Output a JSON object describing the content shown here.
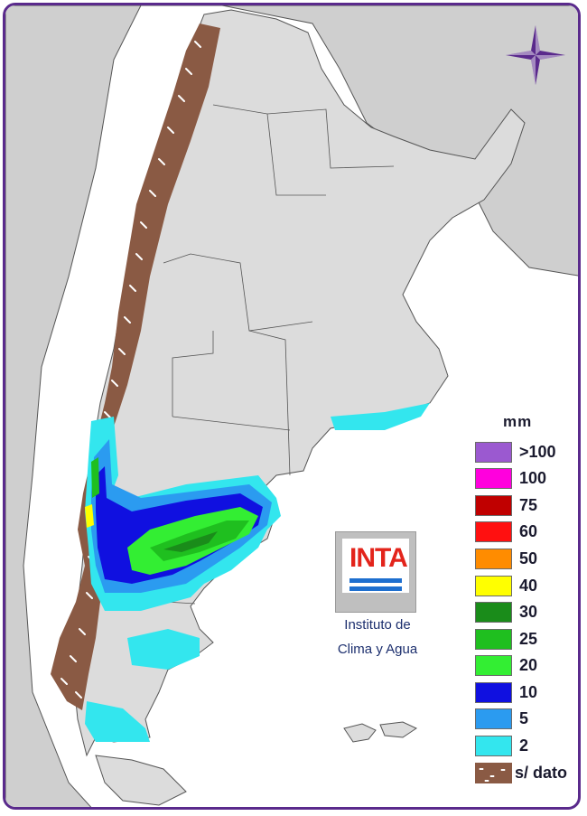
{
  "legend": {
    "title": "mm",
    "items": [
      {
        "label": ">100",
        "color": "#9b59d0"
      },
      {
        "label": "100",
        "color": "#ff00dd"
      },
      {
        "label": "75",
        "color": "#c00000"
      },
      {
        "label": "60",
        "color": "#ff1010"
      },
      {
        "label": "50",
        "color": "#ff8c00"
      },
      {
        "label": "40",
        "color": "#ffff00"
      },
      {
        "label": "30",
        "color": "#1a8c1a"
      },
      {
        "label": "25",
        "color": "#1fbf1f"
      },
      {
        "label": "20",
        "color": "#33ee33"
      },
      {
        "label": "10",
        "color": "#1010e0"
      },
      {
        "label": "5",
        "color": "#2b9bf0"
      },
      {
        "label": "2",
        "color": "#33e6ee"
      },
      {
        "label": "s/ dato",
        "color": "#8a5a44"
      }
    ]
  },
  "logo": {
    "text": "INTA",
    "caption_line1": "Instituto de",
    "caption_line2": "Clima y Agua"
  },
  "map": {
    "land_color": "#dcdcdc",
    "neighbor_color": "#c8c8c8",
    "ocean_color": "#ffffff"
  }
}
